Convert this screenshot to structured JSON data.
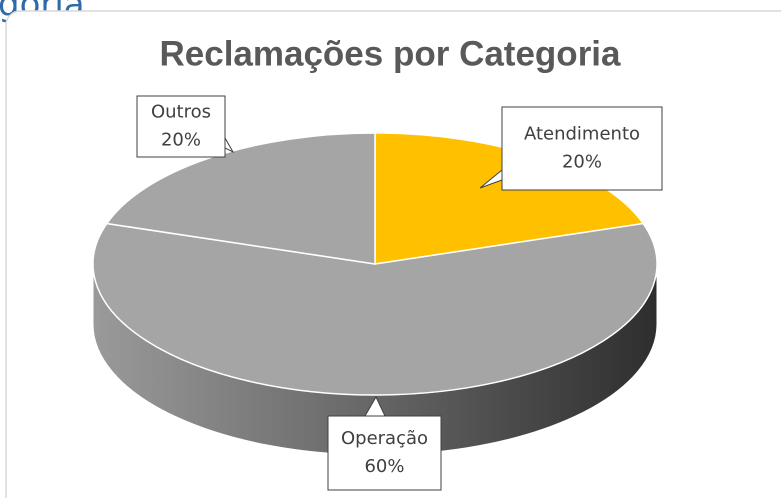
{
  "page_heading": "goria",
  "chart_data": {
    "type": "pie3d",
    "title": "Reclamações por Categoria",
    "categories": [
      "Atendimento",
      "Operação",
      "Outros"
    ],
    "values": [
      20,
      60,
      20
    ],
    "value_labels": [
      "20%",
      "60%",
      "20%"
    ],
    "colors": [
      "#FFC000",
      "#A5A5A5",
      "#A5A5A5"
    ]
  }
}
